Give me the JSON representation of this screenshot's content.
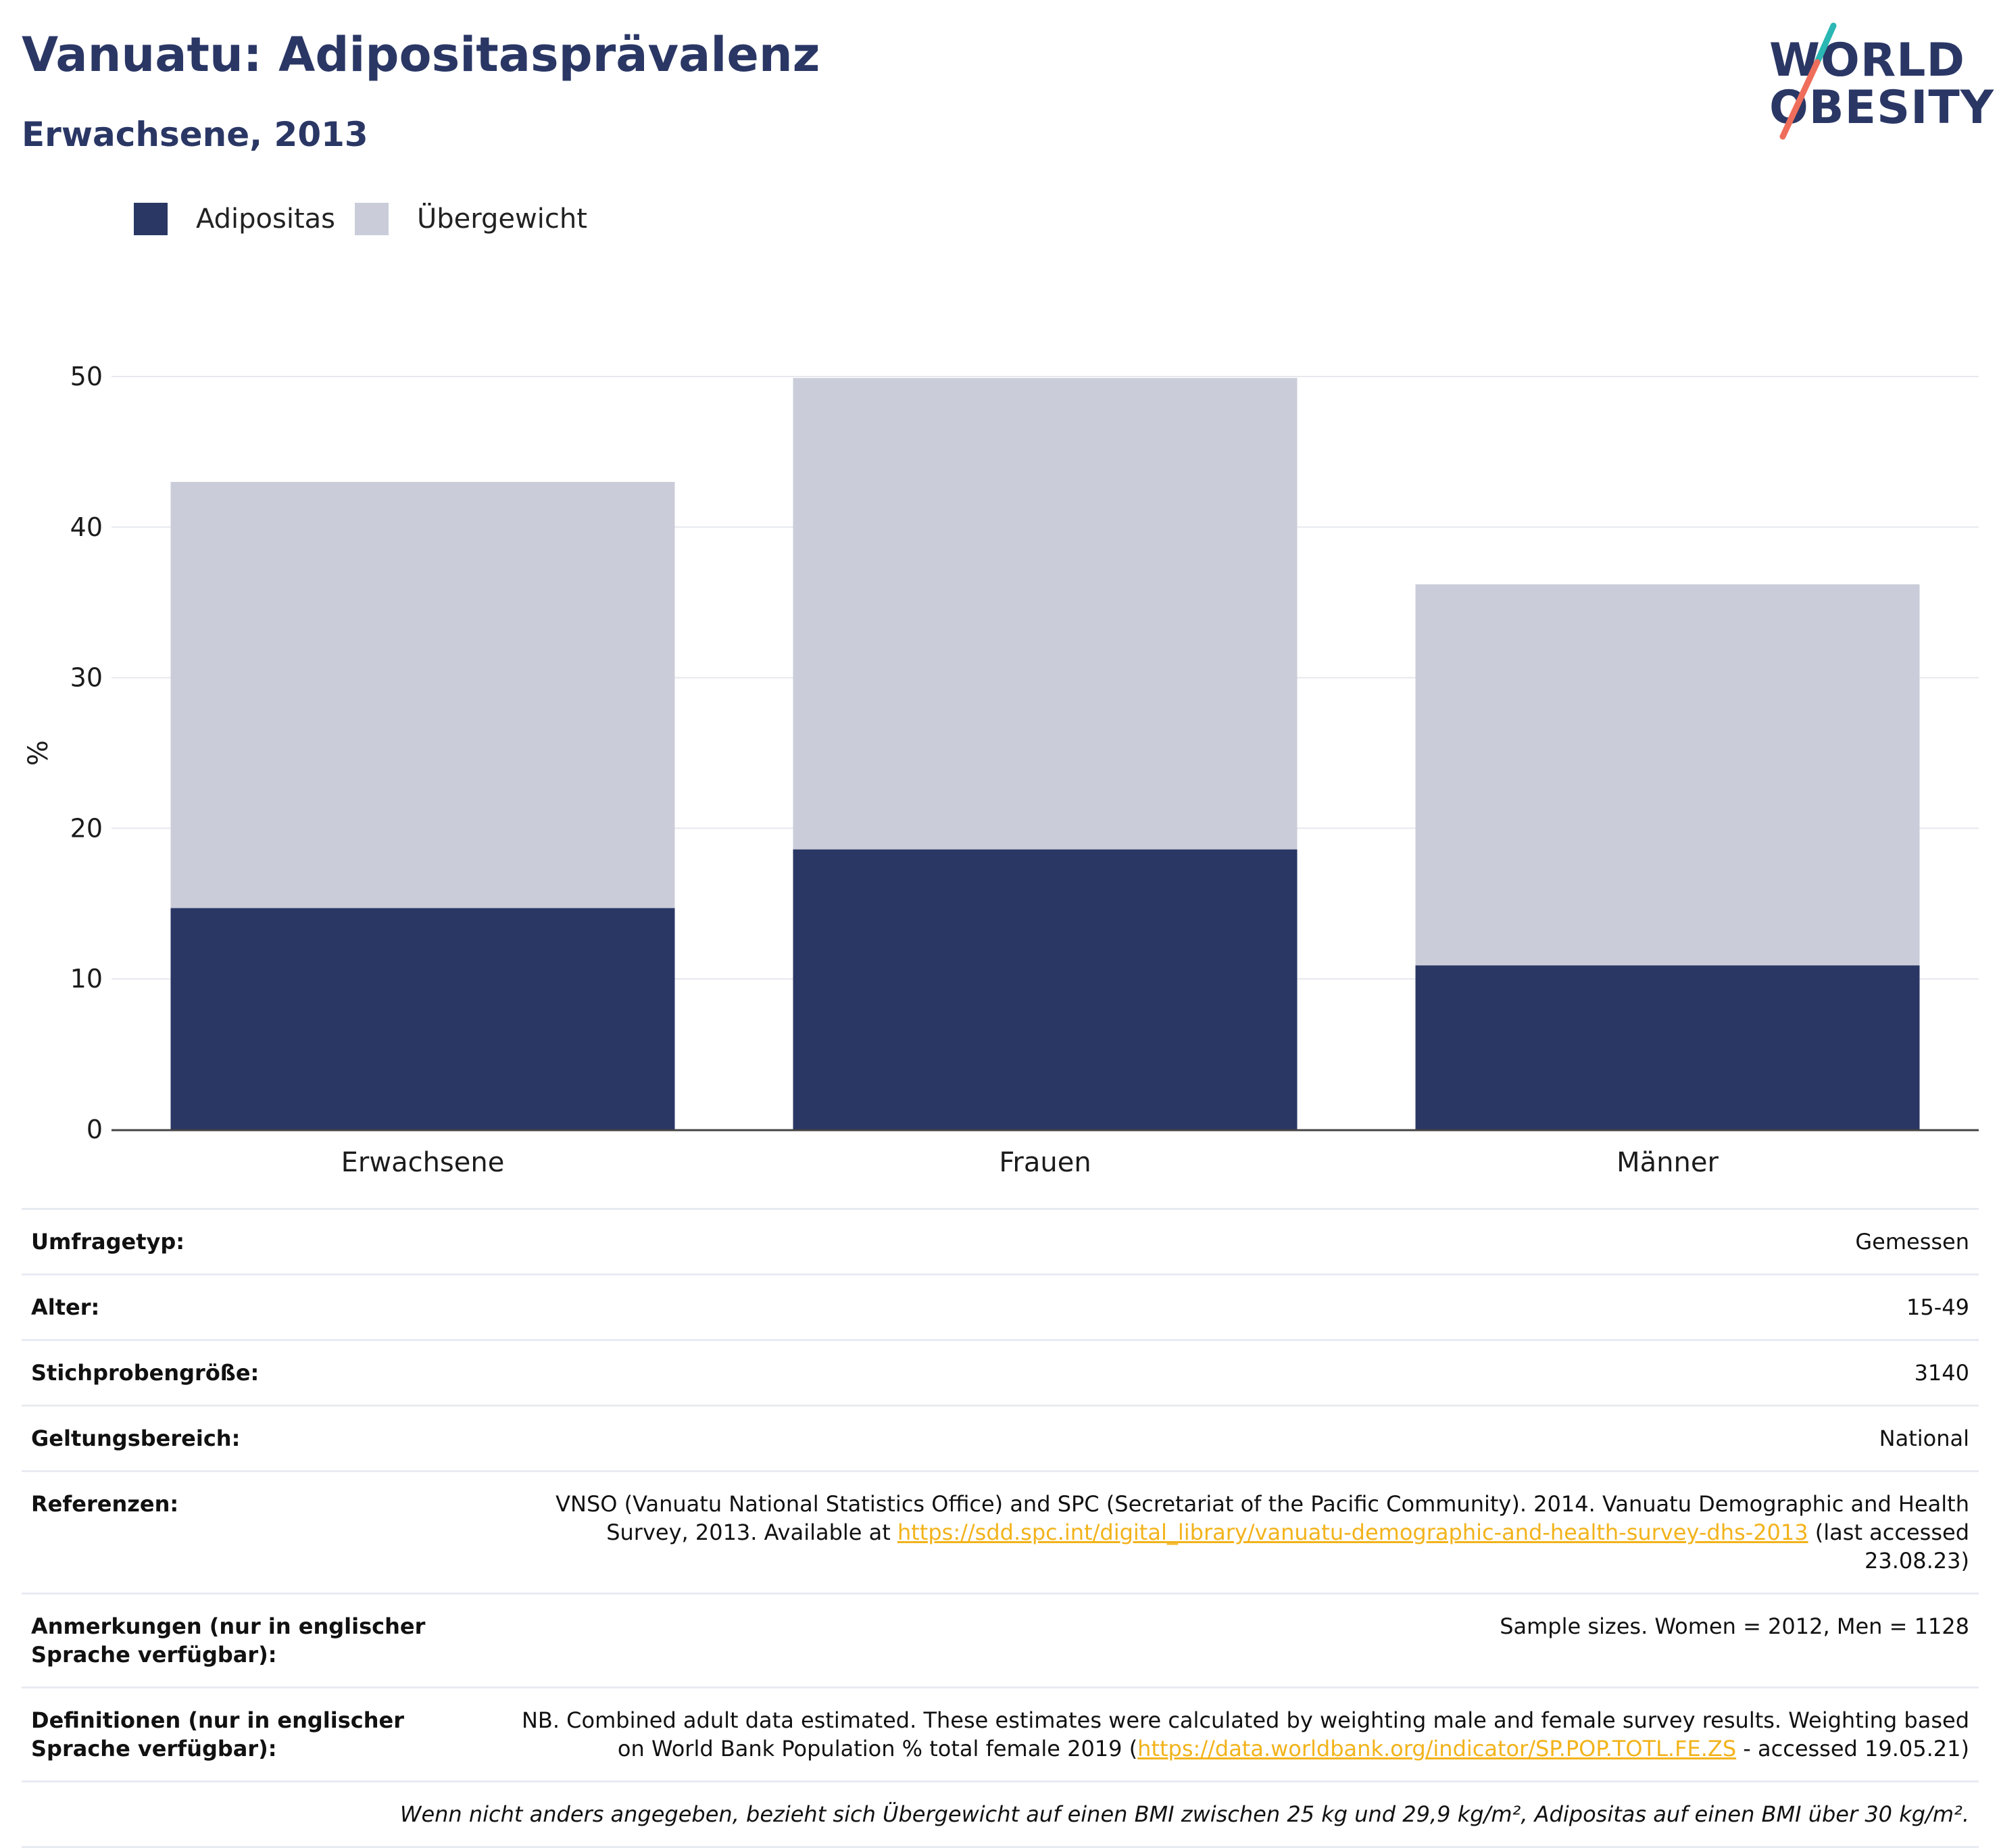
{
  "header": {
    "title": "Vanuatu: Adipositasprävalenz",
    "subtitle": "Erwachsene, 2013"
  },
  "logo": {
    "line1": "WORLD",
    "line2": "OBESITY",
    "colors": {
      "text": "#2a3765",
      "stroke_top": "#2bb7b3",
      "stroke_bottom": "#ef6e5b"
    }
  },
  "legend": {
    "items": [
      {
        "label": "Adipositas",
        "color": "#2a3765"
      },
      {
        "label": "Übergewicht",
        "color": "#cacdd9"
      }
    ]
  },
  "chart_data": {
    "type": "bar",
    "stacked": true,
    "categories": [
      "Erwachsene",
      "Frauen",
      "Männer"
    ],
    "series": [
      {
        "name": "Adipositas",
        "values": [
          14.7,
          18.6,
          10.9
        ],
        "color": "#2a3765"
      },
      {
        "name": "Übergewicht",
        "values": [
          28.3,
          31.3,
          25.3
        ],
        "color": "#cacdd9"
      }
    ],
    "title": "Vanuatu: Adipositasprävalenz",
    "subtitle": "Erwachsene, 2013",
    "xlabel": "",
    "ylabel": "%",
    "ylim": [
      0,
      50
    ],
    "yticks": [
      0,
      10,
      20,
      30,
      40,
      50
    ],
    "grid": true,
    "legend_position": "top-left"
  },
  "info": {
    "rows": [
      {
        "label": "Umfragetyp:",
        "value": "Gemessen"
      },
      {
        "label": "Alter:",
        "value": "15-49"
      },
      {
        "label": "Stichprobengröße:",
        "value": "3140"
      },
      {
        "label": "Geltungsbereich:",
        "value": "National"
      },
      {
        "label": "Referenzen:",
        "value_before": "VNSO (Vanuatu National Statistics Office) and SPC (Secretariat of the Pacific Community). 2014. Vanuatu Demographic and Health Survey, 2013. Available at ",
        "link": "https://sdd.spc.int/digital_library/vanuatu-demographic-and-health-survey-dhs-2013",
        "value_after": " (last accessed 23.08.23)"
      },
      {
        "label": "Anmerkungen (nur in englischer Sprache verfügbar):",
        "value": "Sample sizes. Women = 2012, Men = 1128"
      },
      {
        "label": "Definitionen (nur in englischer Sprache verfügbar):",
        "value_before": "NB. Combined adult data estimated. These estimates were calculated by weighting male and female survey results. Weighting based on World Bank Population % total female 2019 (",
        "link": "https://data.worldbank.org/indicator/SP.POP.TOTL.FE.ZS",
        "value_after": " - accessed 19.05.21)"
      }
    ],
    "footnote": "Wenn nicht anders angegeben, bezieht sich Übergewicht auf einen BMI zwischen 25 kg und 29,9 kg/m², Adipositas auf einen BMI über 30 kg/m²."
  }
}
